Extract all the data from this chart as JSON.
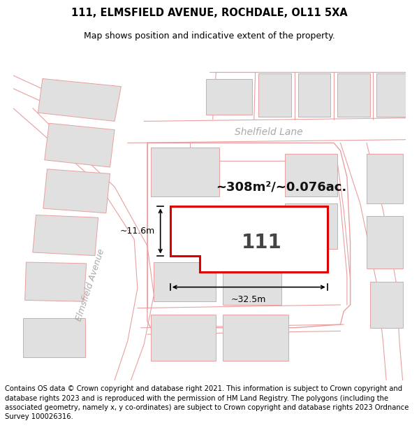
{
  "title_line1": "111, ELMSFIELD AVENUE, ROCHDALE, OL11 5XA",
  "title_line2": "Map shows position and indicative extent of the property.",
  "footer_text": "Contains OS data © Crown copyright and database right 2021. This information is subject to Crown copyright and database rights 2023 and is reproduced with the permission of HM Land Registry. The polygons (including the associated geometry, namely x, y co-ordinates) are subject to Crown copyright and database rights 2023 Ordnance Survey 100026316.",
  "area_label": "~308m²/~0.076ac.",
  "plot_number": "111",
  "dim_width": "~32.5m",
  "dim_height": "~11.6m",
  "bg_color": "#ffffff",
  "map_bg_color": "#ffffff",
  "plot_outline_color": "#dd0000",
  "plot_fill_color": "#ffffff",
  "other_plots_fill": "#e0e0e0",
  "other_plots_outline": "#e8a0a0",
  "road_line_color": "#e8a0a0",
  "street_label_color": "#aaaaaa",
  "title_fontsize": 10.5,
  "subtitle_fontsize": 9,
  "footer_fontsize": 7.2,
  "area_fontsize": 13,
  "plot_num_fontsize": 20,
  "dim_fontsize": 9
}
